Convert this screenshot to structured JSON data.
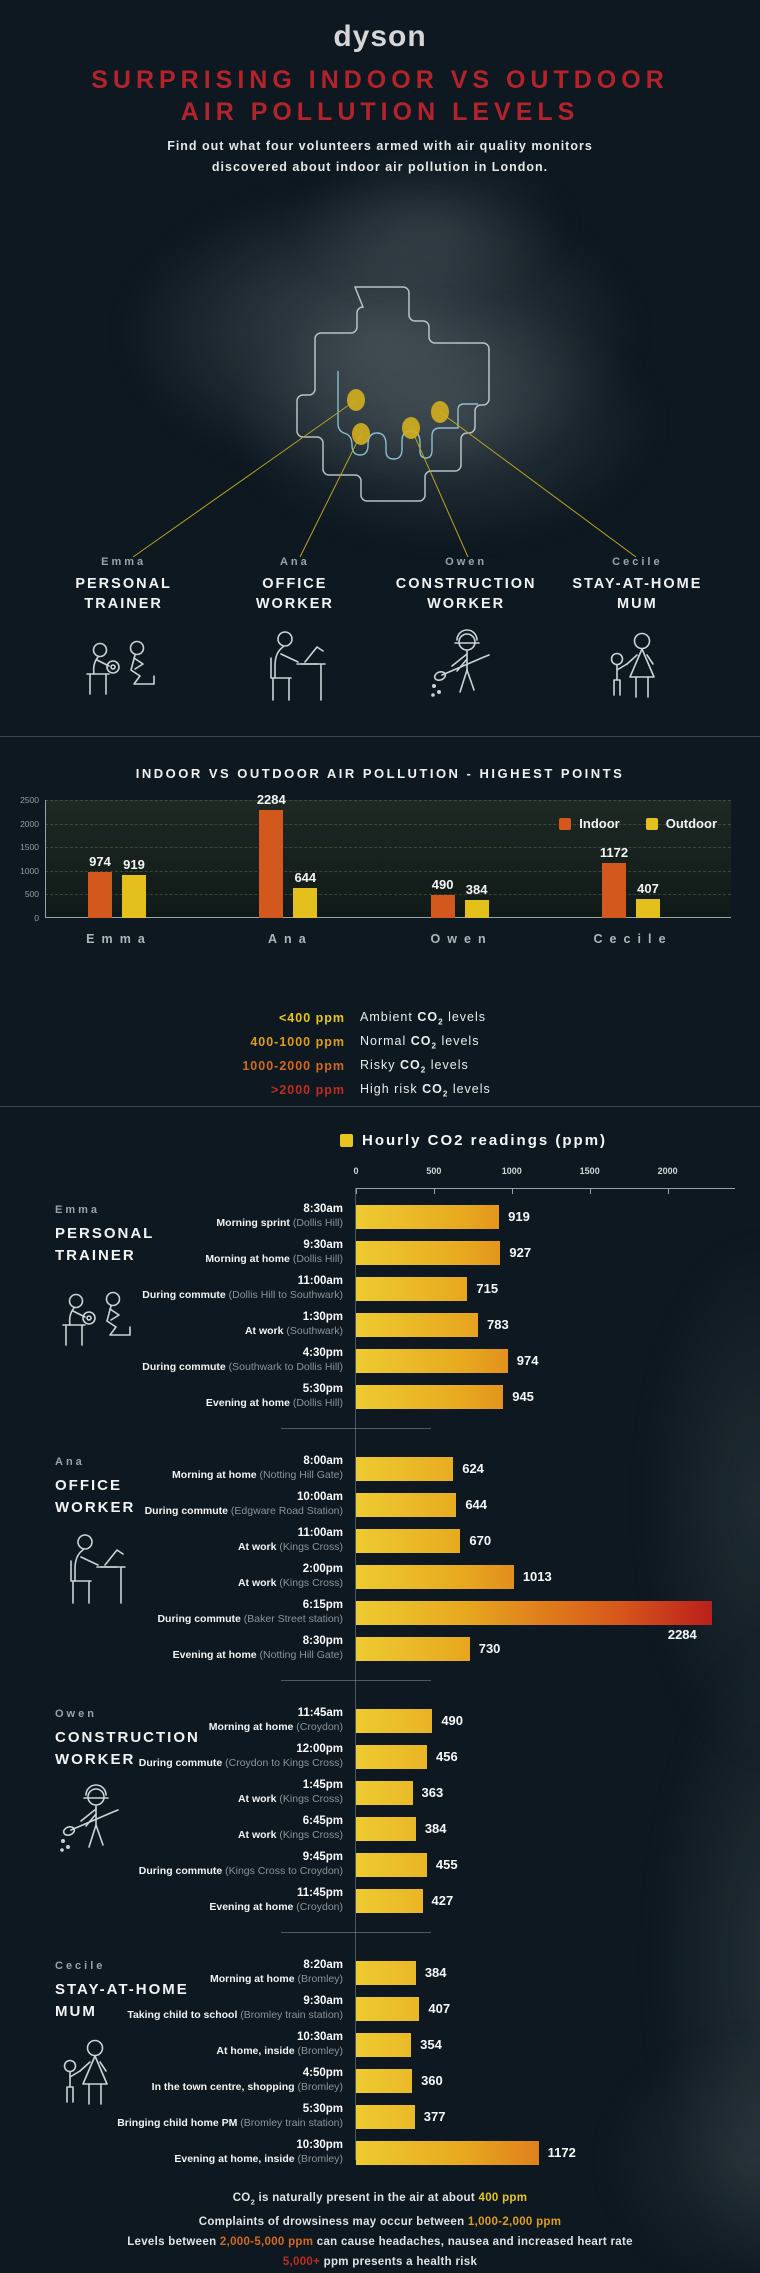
{
  "brand": {
    "logo_text": "dyson"
  },
  "header": {
    "title_line1": "SURPRISING INDOOR VS OUTDOOR",
    "title_line2": "AIR POLLUTION LEVELS",
    "subtitle_line1": "Find out what four volunteers armed with air quality monitors",
    "subtitle_line2": "discovered about indoor air pollution in London."
  },
  "volunteers": [
    {
      "name": "Emma",
      "role_lines": [
        "PERSONAL",
        "TRAINER"
      ],
      "icon": "personal-trainer-icon"
    },
    {
      "name": "Ana",
      "role_lines": [
        "OFFICE",
        "WORKER"
      ],
      "icon": "office-worker-icon"
    },
    {
      "name": "Owen",
      "role_lines": [
        "CONSTRUCTION",
        "WORKER"
      ],
      "icon": "construction-worker-icon"
    },
    {
      "name": "Cecile",
      "role_lines": [
        "STAY-AT-HOME",
        "MUM"
      ],
      "icon": "stay-at-home-mum-icon"
    }
  ],
  "chart_data": [
    {
      "type": "bar",
      "title": "INDOOR VS OUTDOOR AIR POLLUTION - HIGHEST POINTS",
      "categories": [
        "Emma",
        "Ana",
        "Owen",
        "Cecile"
      ],
      "series": [
        {
          "name": "Indoor",
          "color": "#d2581e",
          "values": [
            974,
            2284,
            490,
            1172
          ]
        },
        {
          "name": "Outdoor",
          "color": "#e3c01b",
          "values": [
            919,
            644,
            384,
            407
          ]
        }
      ],
      "ylim": [
        0,
        2500
      ],
      "yticks": [
        0,
        500,
        1000,
        1500,
        2000,
        2500
      ],
      "grid": "dashed",
      "legend_position": "top-right"
    },
    {
      "type": "bar",
      "orientation": "horizontal",
      "title": "Hourly CO2 readings (ppm)",
      "xlim": [
        0,
        2284
      ],
      "xticks": [
        0,
        500,
        1000,
        1500,
        2000
      ],
      "groups": [
        {
          "person": "Emma",
          "readings": [
            {
              "time": "8:30am",
              "activity": "Morning sprint",
              "location": "Dollis Hill",
              "value": 919
            },
            {
              "time": "9:30am",
              "activity": "Morning at home",
              "location": "Dollis Hill",
              "value": 927
            },
            {
              "time": "11:00am",
              "activity": "During commute",
              "location": "Dollis Hill to Southwark",
              "value": 715
            },
            {
              "time": "1:30pm",
              "activity": "At work",
              "location": "Southwark",
              "value": 783
            },
            {
              "time": "4:30pm",
              "activity": "During commute",
              "location": "Southwark to Dollis Hill",
              "value": 974
            },
            {
              "time": "5:30pm",
              "activity": "Evening at home",
              "location": "Dollis Hill",
              "value": 945
            }
          ]
        },
        {
          "person": "Ana",
          "readings": [
            {
              "time": "8:00am",
              "activity": "Morning at home",
              "location": "Notting Hill Gate",
              "value": 624
            },
            {
              "time": "10:00am",
              "activity": "During commute",
              "location": "Edgware Road Station",
              "value": 644
            },
            {
              "time": "11:00am",
              "activity": "At work",
              "location": "Kings Cross",
              "value": 670
            },
            {
              "time": "2:00pm",
              "activity": "At work",
              "location": "Kings Cross",
              "value": 1013
            },
            {
              "time": "6:15pm",
              "activity": "During commute",
              "location": "Baker Street station",
              "value": 2284
            },
            {
              "time": "8:30pm",
              "activity": "Evening at home",
              "location": "Notting Hill Gate",
              "value": 730
            }
          ]
        },
        {
          "person": "Owen",
          "readings": [
            {
              "time": "11:45am",
              "activity": "Morning at home",
              "location": "Croydon",
              "value": 490
            },
            {
              "time": "12:00pm",
              "activity": "During commute",
              "location": "Croydon to Kings Cross",
              "value": 456
            },
            {
              "time": "1:45pm",
              "activity": "At work",
              "location": "Kings Cross",
              "value": 363
            },
            {
              "time": "6:45pm",
              "activity": "At work",
              "location": "Kings Cross",
              "value": 384
            },
            {
              "time": "9:45pm",
              "activity": "During commute",
              "location": "Kings Cross to Croydon",
              "value": 455
            },
            {
              "time": "11:45pm",
              "activity": "Evening at home",
              "location": "Croydon",
              "value": 427
            }
          ]
        },
        {
          "person": "Cecile",
          "readings": [
            {
              "time": "8:20am",
              "activity": "Morning at home",
              "location": "Bromley",
              "value": 384
            },
            {
              "time": "9:30am",
              "activity": "Taking child to school",
              "location": "Bromley train station",
              "value": 407
            },
            {
              "time": "10:30am",
              "activity": "At home, inside",
              "location": "Bromley",
              "value": 354
            },
            {
              "time": "4:50pm",
              "activity": "In the town centre, shopping",
              "location": "Bromley",
              "value": 360
            },
            {
              "time": "5:30pm",
              "activity": "Bringing child home PM",
              "location": "Bromley train station",
              "value": 377
            },
            {
              "time": "10:30pm",
              "activity": "Evening at home, inside",
              "location": "Bromley",
              "value": 1172
            }
          ]
        }
      ]
    }
  ],
  "co2_scale": [
    {
      "range": "<400 ppm",
      "color": "#e8c51d",
      "desc": [
        {
          "t": "Ambient "
        },
        {
          "t": "CO",
          "b": true
        },
        {
          "t": "2",
          "b": true,
          "sub": true
        },
        {
          "t": " levels"
        }
      ]
    },
    {
      "range": "400-1000 ppm",
      "color": "#df9d1c",
      "desc": [
        {
          "t": "Normal "
        },
        {
          "t": "CO",
          "b": true
        },
        {
          "t": "2",
          "b": true,
          "sub": true
        },
        {
          "t": " levels"
        }
      ]
    },
    {
      "range": "1000-2000 ppm",
      "color": "#d4691c",
      "desc": [
        {
          "t": "Risky "
        },
        {
          "t": "CO",
          "b": true
        },
        {
          "t": "2",
          "b": true,
          "sub": true
        },
        {
          "t": " levels"
        }
      ]
    },
    {
      "range": ">2000 ppm",
      "color": "#bf2c22",
      "desc": [
        {
          "t": "High risk "
        },
        {
          "t": "CO",
          "b": true
        },
        {
          "t": "2",
          "b": true,
          "sub": true
        },
        {
          "t": " levels"
        }
      ]
    }
  ],
  "footer": {
    "lines": [
      [
        {
          "t": "CO",
          "b": true
        },
        {
          "t": "2",
          "b": true,
          "sub": true
        },
        {
          "t": " is naturally present in the air at about "
        },
        {
          "t": "400 ppm",
          "b": true,
          "c": "#e8c51d"
        }
      ],
      [
        {
          "t": "Complaints of drowsiness may occur between "
        },
        {
          "t": "1,000-2,000 ppm",
          "b": true,
          "c": "#df9d1c"
        }
      ],
      [
        {
          "t": "Levels between "
        },
        {
          "t": "2,000-5,000 ppm",
          "b": true,
          "c": "#d4691c"
        },
        {
          "t": " can cause headaches, nausea and increased heart rate"
        }
      ],
      [
        {
          "t": "5,000+",
          "b": true,
          "c": "#bf2c22"
        },
        {
          "t": " ppm presents a health risk"
        }
      ]
    ]
  },
  "colors": {
    "background": "#0d1820",
    "title_red": "#b4232b",
    "indoor": "#d2581e",
    "outdoor": "#e3c01b",
    "gradient_yellow": "#eecb31",
    "gradient_orange": "#e07f1c",
    "gradient_red": "#b7211c"
  }
}
